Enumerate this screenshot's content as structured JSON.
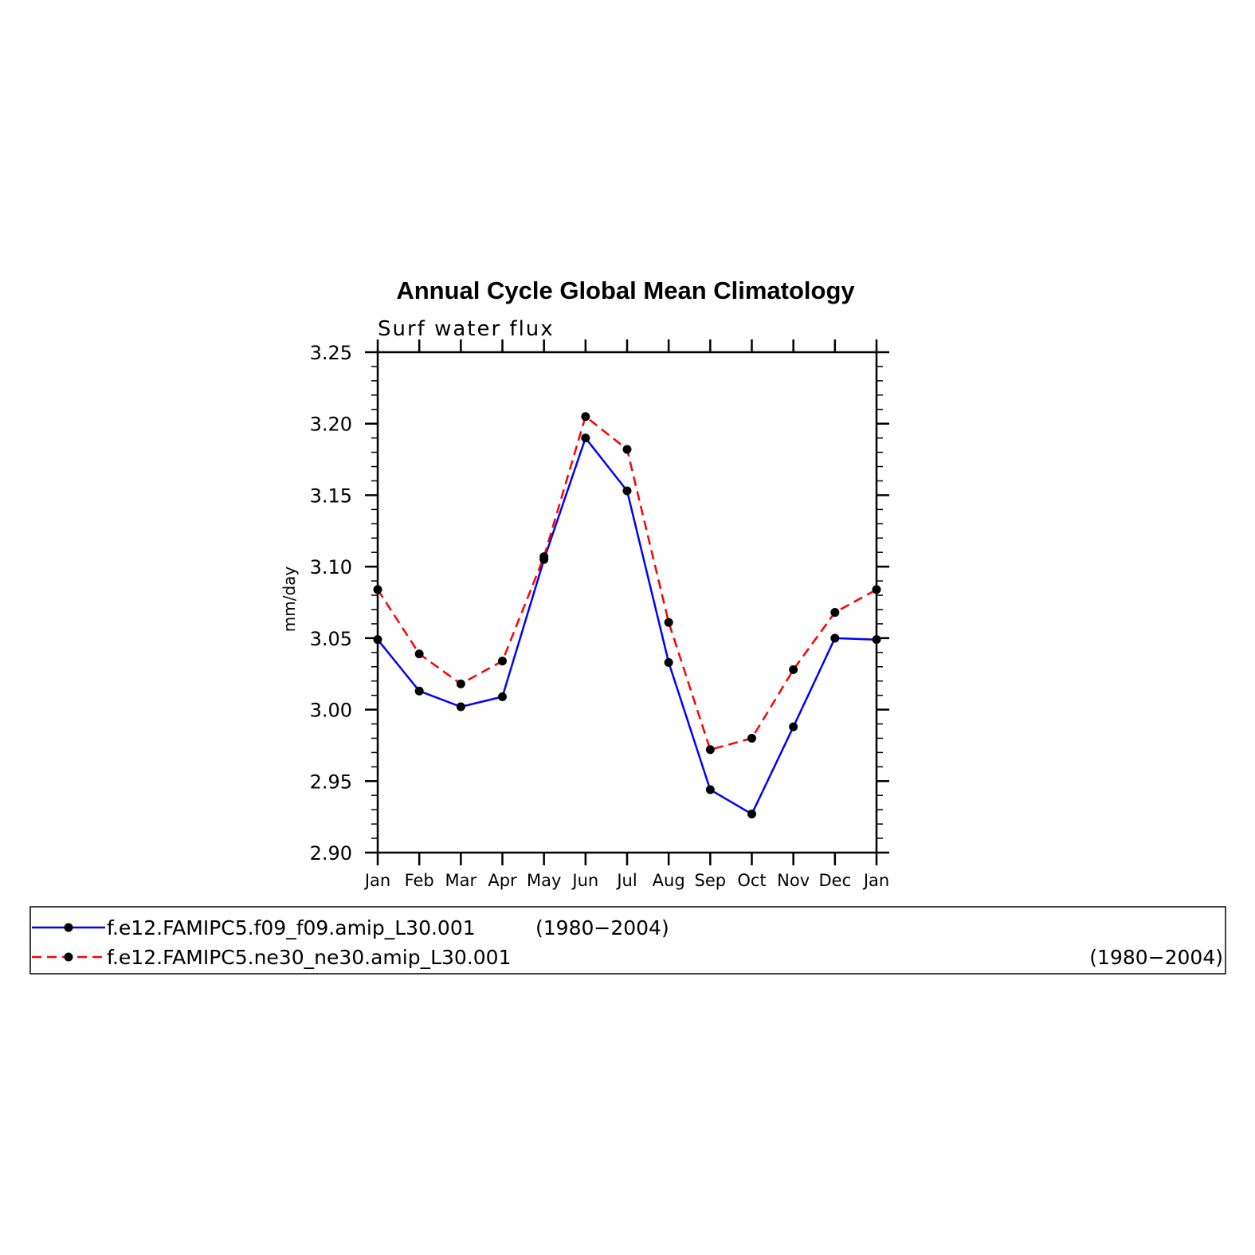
{
  "chart_data": {
    "type": "line",
    "title": "Annual Cycle Global Mean Climatology",
    "subtitle": "Surf water flux",
    "ylabel": "mm/day",
    "xlabel": "",
    "categories": [
      "Jan",
      "Feb",
      "Mar",
      "Apr",
      "May",
      "Jun",
      "Jul",
      "Aug",
      "Sep",
      "Oct",
      "Nov",
      "Dec",
      "Jan"
    ],
    "ylim": [
      2.9,
      3.25
    ],
    "yticks": [
      "2.90",
      "2.95",
      "3.00",
      "3.05",
      "3.10",
      "3.15",
      "3.20",
      "3.25"
    ],
    "grid": false,
    "legend_position": "bottom",
    "series": [
      {
        "name": "f.e12.FAMIPC5.f09_f09.amip_L30.001",
        "period": "(1980−2004)",
        "color": "#0000ff",
        "line_style": "solid",
        "marker": "filled-circle",
        "values": [
          3.049,
          3.013,
          3.002,
          3.009,
          3.105,
          3.19,
          3.153,
          3.033,
          2.944,
          2.927,
          2.988,
          3.05,
          3.049
        ]
      },
      {
        "name": "f.e12.FAMIPC5.ne30_ne30.amip_L30.001",
        "period": "(1980−2004)",
        "color": "#ff0000",
        "line_style": "dashed",
        "marker": "filled-circle",
        "values": [
          3.084,
          3.039,
          3.018,
          3.034,
          3.107,
          3.205,
          3.182,
          3.061,
          2.972,
          2.98,
          3.028,
          3.068,
          3.084
        ]
      }
    ]
  }
}
